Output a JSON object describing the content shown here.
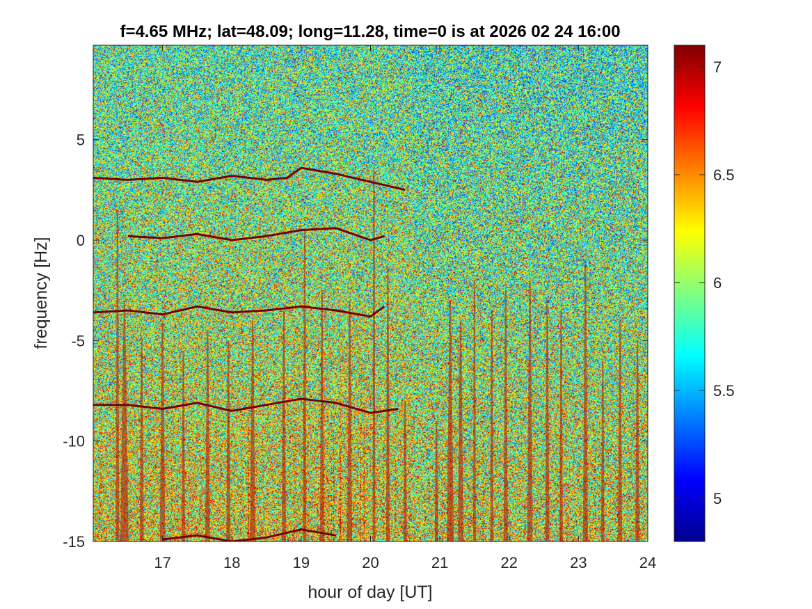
{
  "chart_data": {
    "type": "heatmap",
    "title": "f=4.65 MHz;  lat=48.09; long=11.28, time=0 is at 2026 02 24 16:00",
    "xlabel": "hour of day [UT]",
    "ylabel": "frequency [Hz]",
    "xlim": [
      16.0,
      24.0
    ],
    "ylim": [
      -15,
      9.7
    ],
    "xticks": [
      17,
      18,
      19,
      20,
      21,
      22,
      23,
      24
    ],
    "xtick_labels": [
      "17",
      "18",
      "19",
      "20",
      "21",
      "22",
      "23",
      "24"
    ],
    "yticks": [
      5,
      0,
      -5,
      -10,
      -15
    ],
    "ytick_labels": [
      "5",
      "0",
      "-5",
      "-10",
      "-15"
    ],
    "colorbar": {
      "range": [
        4.8,
        7.1
      ],
      "ticks": [
        7,
        6.5,
        6,
        5.5,
        5
      ],
      "tick_labels": [
        "7",
        "6.5",
        "6",
        "5.5",
        "5"
      ],
      "colormap": "jet"
    },
    "background_level": 6.0,
    "grid": false,
    "traces": [
      {
        "x": [
          16.0,
          16.5,
          17.0,
          17.5,
          18.0,
          18.5,
          18.8,
          19.0,
          19.5,
          20.0,
          20.5
        ],
        "y": [
          3.1,
          3.0,
          3.1,
          2.9,
          3.2,
          3.0,
          3.1,
          3.6,
          3.3,
          2.9,
          2.5
        ]
      },
      {
        "x": [
          16.5,
          17.0,
          17.5,
          18.0,
          18.5,
          19.0,
          19.5,
          20.0,
          20.2
        ],
        "y": [
          0.2,
          0.1,
          0.3,
          0.0,
          0.2,
          0.5,
          0.6,
          0.0,
          0.2
        ]
      },
      {
        "x": [
          16.0,
          16.5,
          17.0,
          17.5,
          18.0,
          18.5,
          19.0,
          19.5,
          20.0,
          20.2
        ],
        "y": [
          -3.6,
          -3.5,
          -3.7,
          -3.3,
          -3.6,
          -3.5,
          -3.3,
          -3.5,
          -3.8,
          -3.3
        ]
      },
      {
        "x": [
          16.0,
          16.5,
          17.0,
          17.5,
          18.0,
          18.5,
          19.0,
          19.5,
          20.0,
          20.4
        ],
        "y": [
          -8.2,
          -8.2,
          -8.4,
          -8.1,
          -8.5,
          -8.2,
          -7.9,
          -8.1,
          -8.6,
          -8.4
        ]
      },
      {
        "x": [
          17.0,
          17.5,
          18.0,
          18.5,
          19.0,
          19.5
        ],
        "y": [
          -14.9,
          -14.7,
          -15.0,
          -14.8,
          -14.4,
          -14.7
        ]
      }
    ],
    "spikes": [
      {
        "x": 16.35,
        "top": 1.5,
        "width": 0.05
      },
      {
        "x": 16.45,
        "top": -3.0,
        "width": 0.12
      },
      {
        "x": 16.7,
        "top": -5.0,
        "width": 0.06
      },
      {
        "x": 17.0,
        "top": -4.0,
        "width": 0.08
      },
      {
        "x": 17.3,
        "top": -5.5,
        "width": 0.05
      },
      {
        "x": 17.65,
        "top": -4.5,
        "width": 0.07
      },
      {
        "x": 17.95,
        "top": -5.0,
        "width": 0.06
      },
      {
        "x": 18.3,
        "top": -4.0,
        "width": 0.08
      },
      {
        "x": 18.75,
        "top": -3.5,
        "width": 0.06
      },
      {
        "x": 19.05,
        "top": 0.5,
        "width": 0.05
      },
      {
        "x": 19.3,
        "top": -2.5,
        "width": 0.06
      },
      {
        "x": 19.7,
        "top": -3.0,
        "width": 0.07
      },
      {
        "x": 20.05,
        "top": 3.5,
        "width": 0.04
      },
      {
        "x": 20.25,
        "top": -1.5,
        "width": 0.05
      },
      {
        "x": 20.5,
        "top": -8.0,
        "width": 0.05
      },
      {
        "x": 20.95,
        "top": -9.0,
        "width": 0.05
      },
      {
        "x": 21.15,
        "top": -3.0,
        "width": 0.1
      },
      {
        "x": 21.3,
        "top": -4.0,
        "width": 0.08
      },
      {
        "x": 21.5,
        "top": -2.0,
        "width": 0.04
      },
      {
        "x": 21.75,
        "top": -3.5,
        "width": 0.05
      },
      {
        "x": 21.95,
        "top": -2.5,
        "width": 0.06
      },
      {
        "x": 22.3,
        "top": -2.0,
        "width": 0.08
      },
      {
        "x": 22.55,
        "top": -3.0,
        "width": 0.06
      },
      {
        "x": 22.75,
        "top": -3.5,
        "width": 0.05
      },
      {
        "x": 23.1,
        "top": -1.0,
        "width": 0.07
      },
      {
        "x": 23.35,
        "top": -6.0,
        "width": 0.05
      },
      {
        "x": 23.6,
        "top": -4.0,
        "width": 0.06
      },
      {
        "x": 23.85,
        "top": -5.0,
        "width": 0.06
      }
    ]
  }
}
